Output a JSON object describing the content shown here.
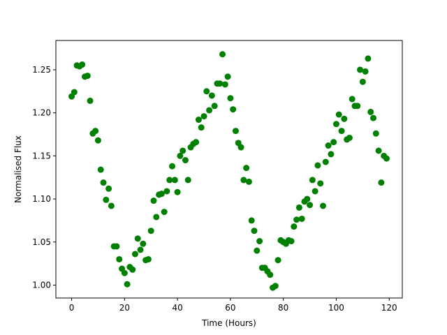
{
  "chart_data": {
    "type": "scatter",
    "xlabel": "Time (Hours)",
    "ylabel": "Normalised Flux",
    "xlim": [
      -5.95,
      124.95
    ],
    "ylim": [
      0.985,
      1.284
    ],
    "xticks": [
      0,
      20,
      40,
      60,
      80,
      100,
      120
    ],
    "yticks": [
      1.0,
      1.05,
      1.1,
      1.15,
      1.2,
      1.25
    ],
    "x_tick_labels": [
      "0",
      "20",
      "40",
      "60",
      "80",
      "100",
      "120"
    ],
    "y_tick_labels": [
      "1.00",
      "1.05",
      "1.10",
      "1.15",
      "1.20",
      "1.25"
    ],
    "grid": false,
    "marker_color": "#008000",
    "points": [
      [
        0,
        1.219
      ],
      [
        1,
        1.224
      ],
      [
        2,
        1.255
      ],
      [
        3,
        1.254
      ],
      [
        4,
        1.256
      ],
      [
        5,
        1.242
      ],
      [
        6,
        1.243
      ],
      [
        7,
        1.214
      ],
      [
        8,
        1.176
      ],
      [
        9,
        1.179
      ],
      [
        10,
        1.168
      ],
      [
        11,
        1.134
      ],
      [
        12,
        1.119
      ],
      [
        13,
        1.099
      ],
      [
        14,
        1.112
      ],
      [
        15,
        1.092
      ],
      [
        16,
        1.045
      ],
      [
        17,
        1.045
      ],
      [
        18,
        1.03
      ],
      [
        19,
        1.019
      ],
      [
        20,
        1.014
      ],
      [
        21,
        1.001
      ],
      [
        22,
        1.021
      ],
      [
        23,
        1.018
      ],
      [
        24,
        1.036
      ],
      [
        25,
        1.054
      ],
      [
        26,
        1.041
      ],
      [
        27,
        1.048
      ],
      [
        28,
        1.029
      ],
      [
        29,
        1.03
      ],
      [
        30,
        1.063
      ],
      [
        31,
        1.098
      ],
      [
        32,
        1.079
      ],
      [
        33,
        1.105
      ],
      [
        34,
        1.106
      ],
      [
        35,
        1.085
      ],
      [
        36,
        1.109
      ],
      [
        37,
        1.122
      ],
      [
        38,
        1.138
      ],
      [
        39,
        1.122
      ],
      [
        40,
        1.108
      ],
      [
        41,
        1.15
      ],
      [
        42,
        1.156
      ],
      [
        43,
        1.145
      ],
      [
        44,
        1.122
      ],
      [
        45,
        1.16
      ],
      [
        46,
        1.164
      ],
      [
        47,
        1.166
      ],
      [
        48,
        1.192
      ],
      [
        49,
        1.183
      ],
      [
        50,
        1.196
      ],
      [
        51,
        1.225
      ],
      [
        52,
        1.203
      ],
      [
        53,
        1.22
      ],
      [
        54,
        1.208
      ],
      [
        55,
        1.234
      ],
      [
        56,
        1.234
      ],
      [
        57,
        1.268
      ],
      [
        58,
        1.233
      ],
      [
        59,
        1.242
      ],
      [
        60,
        1.217
      ],
      [
        61,
        1.204
      ],
      [
        62,
        1.179
      ],
      [
        63,
        1.165
      ],
      [
        64,
        1.16
      ],
      [
        65,
        1.122
      ],
      [
        66,
        1.136
      ],
      [
        67,
        1.12
      ],
      [
        68,
        1.075
      ],
      [
        69,
        1.063
      ],
      [
        70,
        1.04
      ],
      [
        71,
        1.051
      ],
      [
        72,
        1.02
      ],
      [
        73,
        1.02
      ],
      [
        74,
        1.016
      ],
      [
        75,
        1.012
      ],
      [
        76,
        0.997
      ],
      [
        77,
        0.999
      ],
      [
        78,
        1.029
      ],
      [
        79,
        1.052
      ],
      [
        80,
        1.05
      ],
      [
        81,
        1.048
      ],
      [
        82,
        1.052
      ],
      [
        83,
        1.051
      ],
      [
        84,
        1.068
      ],
      [
        85,
        1.076
      ],
      [
        86,
        1.09
      ],
      [
        87,
        1.077
      ],
      [
        88,
        1.097
      ],
      [
        89,
        1.1
      ],
      [
        90,
        1.093
      ],
      [
        91,
        1.122
      ],
      [
        92,
        1.109
      ],
      [
        93,
        1.139
      ],
      [
        94,
        1.118
      ],
      [
        95,
        1.092
      ],
      [
        96,
        1.143
      ],
      [
        97,
        1.162
      ],
      [
        98,
        1.152
      ],
      [
        99,
        1.166
      ],
      [
        100,
        1.187
      ],
      [
        101,
        1.198
      ],
      [
        102,
        1.179
      ],
      [
        103,
        1.193
      ],
      [
        104,
        1.169
      ],
      [
        105,
        1.171
      ],
      [
        106,
        1.216
      ],
      [
        107,
        1.208
      ],
      [
        108,
        1.208
      ],
      [
        109,
        1.25
      ],
      [
        110,
        1.236
      ],
      [
        111,
        1.248
      ],
      [
        112,
        1.263
      ],
      [
        113,
        1.201
      ],
      [
        114,
        1.194
      ],
      [
        115,
        1.176
      ],
      [
        116,
        1.156
      ],
      [
        117,
        1.119
      ],
      [
        118,
        1.15
      ],
      [
        119,
        1.147
      ]
    ]
  }
}
